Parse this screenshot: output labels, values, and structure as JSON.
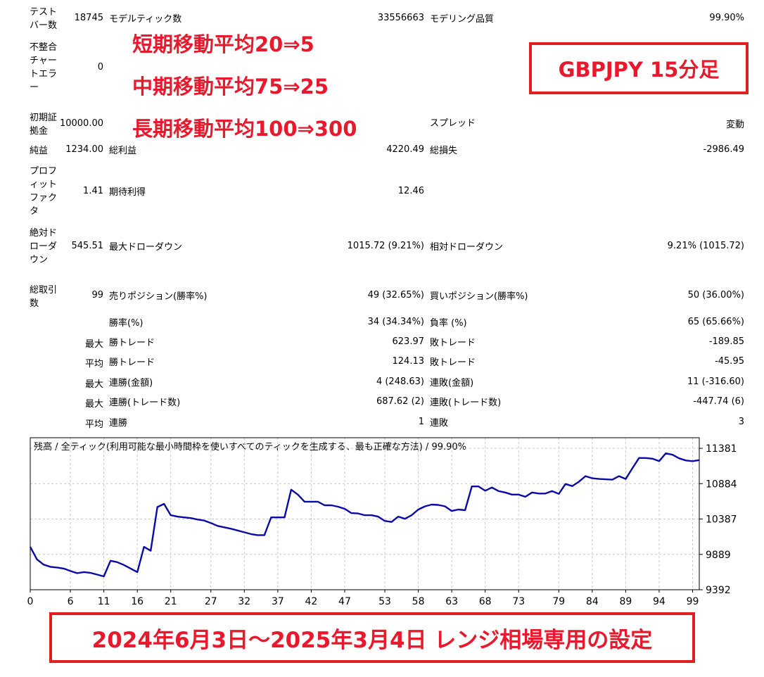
{
  "stats": {
    "bars_label": "テスト\nバー数",
    "bars_value": "18745",
    "ticks_label": "モデルティック数",
    "ticks_value": "33556663",
    "quality_label": "モデリング品質",
    "quality_value": "99.90%",
    "mismatch_label": "不整合\nチャー\nトエラ\nー",
    "mismatch_value": "0",
    "deposit_label": "初期証\n拠金",
    "deposit_value": "10000.00",
    "spread_label": "スプレッド",
    "spread_value": "変動",
    "net_label": "純益",
    "net_value": "1234.00",
    "gross_profit_label": "総利益",
    "gross_profit_value": "4220.49",
    "gross_loss_label": "総損失",
    "gross_loss_value": "-2986.49",
    "pf_label": "プロフ\nィット\nファク\nタ",
    "pf_value": "1.41",
    "expected_label": "期待利得",
    "expected_value": "12.46",
    "abs_dd_label": "絶対ド\nローダ\nウン",
    "abs_dd_value": "545.51",
    "max_dd_label": "最大ドローダウン",
    "max_dd_value": "1015.72 (9.21%)",
    "rel_dd_label": "相対ドローダウン",
    "rel_dd_value": "9.21% (1015.72)",
    "total_trades_label": "総取引\n数",
    "total_trades_value": "99",
    "short_label": "売りポジション(勝率%)",
    "short_value": "49 (32.65%)",
    "long_label": "買いポジション(勝率%)",
    "long_value": "50 (36.00%)",
    "win_rate_label": "勝率(%)",
    "win_rate_value": "34 (34.34%)",
    "loss_rate_label": "負率 (%)",
    "loss_rate_value": "65 (65.66%)",
    "max1": "最大",
    "max_win_label": "勝トレード",
    "max_win_value": "623.97",
    "max_loss_label": "敗トレード",
    "max_loss_value": "-189.85",
    "avg1": "平均",
    "avg_win_label": "勝トレード",
    "avg_win_value": "124.13",
    "avg_loss_label": "敗トレード",
    "avg_loss_value": "-45.95",
    "max2": "最大",
    "cons_win_money_label": "連勝(金額)",
    "cons_win_money_value": "4 (248.63)",
    "cons_loss_money_label": "連敗(金額)",
    "cons_loss_money_value": "11 (-316.60)",
    "max3": "最大",
    "cons_win_count_label": "連勝(トレード数)",
    "cons_win_count_value": "687.62 (2)",
    "cons_loss_count_label": "連敗(トレード数)",
    "cons_loss_count_value": "-447.74 (6)",
    "avg2": "平均",
    "avg_cons_win_label": "連勝",
    "avg_cons_win_value": "1",
    "avg_cons_loss_label": "連敗",
    "avg_cons_loss_value": "3"
  },
  "annotations": {
    "short_ma": "短期移動平均20⇒5",
    "mid_ma": "中期移動平均75⇒25",
    "long_ma": "長期移動平均100⇒300",
    "pair": "GBPJPY 15分足",
    "period": "2024年6月3日～2025年3月4日 レンジ相場専用の設定"
  },
  "colors": {
    "line": "#0a0aa8",
    "grid": "#c8c8c8",
    "annotation": "#e8192c",
    "box_border": "#e02020"
  },
  "chart_data": {
    "type": "line",
    "title": "残高 / 全ティック(利用可能な最小時間枠を使いすべてのティックを生成する、最も正確な方法) / 99.90%",
    "xlabel": "",
    "ylabel": "",
    "xlim": [
      0,
      100
    ],
    "ylim": [
      9392,
      11530
    ],
    "x_ticks": [
      0,
      6,
      11,
      16,
      21,
      27,
      32,
      37,
      42,
      47,
      53,
      58,
      63,
      68,
      73,
      79,
      84,
      89,
      94,
      99
    ],
    "y_ticks": [
      9392,
      9889,
      10387,
      10884,
      11381
    ],
    "grid": true,
    "series": [
      {
        "values": [
          [
            0,
            9995
          ],
          [
            1,
            9820
          ],
          [
            2,
            9745
          ],
          [
            3,
            9715
          ],
          [
            4,
            9705
          ],
          [
            5,
            9690
          ],
          [
            6,
            9655
          ],
          [
            7,
            9625
          ],
          [
            8,
            9640
          ],
          [
            9,
            9630
          ],
          [
            10,
            9605
          ],
          [
            11,
            9580
          ],
          [
            12,
            9800
          ],
          [
            13,
            9780
          ],
          [
            14,
            9740
          ],
          [
            15,
            9690
          ],
          [
            16,
            9640
          ],
          [
            17,
            9995
          ],
          [
            18,
            9940
          ],
          [
            19,
            10555
          ],
          [
            20,
            10600
          ],
          [
            21,
            10440
          ],
          [
            22,
            10420
          ],
          [
            23,
            10410
          ],
          [
            24,
            10400
          ],
          [
            25,
            10380
          ],
          [
            26,
            10365
          ],
          [
            27,
            10330
          ],
          [
            28,
            10290
          ],
          [
            29,
            10270
          ],
          [
            30,
            10250
          ],
          [
            31,
            10225
          ],
          [
            32,
            10200
          ],
          [
            33,
            10175
          ],
          [
            34,
            10160
          ],
          [
            35,
            10160
          ],
          [
            36,
            10410
          ],
          [
            37,
            10410
          ],
          [
            38,
            10410
          ],
          [
            39,
            10800
          ],
          [
            40,
            10730
          ],
          [
            41,
            10630
          ],
          [
            42,
            10630
          ],
          [
            43,
            10630
          ],
          [
            44,
            10580
          ],
          [
            45,
            10580
          ],
          [
            46,
            10560
          ],
          [
            47,
            10530
          ],
          [
            48,
            10470
          ],
          [
            49,
            10465
          ],
          [
            50,
            10440
          ],
          [
            51,
            10440
          ],
          [
            52,
            10420
          ],
          [
            53,
            10360
          ],
          [
            54,
            10345
          ],
          [
            55,
            10420
          ],
          [
            56,
            10390
          ],
          [
            57,
            10440
          ],
          [
            58,
            10520
          ],
          [
            59,
            10565
          ],
          [
            60,
            10590
          ],
          [
            61,
            10585
          ],
          [
            62,
            10565
          ],
          [
            63,
            10500
          ],
          [
            64,
            10520
          ],
          [
            65,
            10510
          ],
          [
            66,
            10845
          ],
          [
            67,
            10845
          ],
          [
            68,
            10785
          ],
          [
            69,
            10830
          ],
          [
            70,
            10780
          ],
          [
            71,
            10760
          ],
          [
            72,
            10730
          ],
          [
            73,
            10730
          ],
          [
            74,
            10700
          ],
          [
            75,
            10760
          ],
          [
            76,
            10745
          ],
          [
            77,
            10745
          ],
          [
            78,
            10780
          ],
          [
            79,
            10740
          ],
          [
            80,
            10880
          ],
          [
            81,
            10850
          ],
          [
            82,
            10910
          ],
          [
            83,
            10990
          ],
          [
            84,
            10960
          ],
          [
            85,
            10950
          ],
          [
            86,
            10945
          ],
          [
            87,
            10940
          ],
          [
            88,
            10990
          ],
          [
            89,
            10950
          ],
          [
            90,
            11100
          ],
          [
            91,
            11245
          ],
          [
            92,
            11245
          ],
          [
            93,
            11235
          ],
          [
            94,
            11200
          ],
          [
            95,
            11310
          ],
          [
            96,
            11290
          ],
          [
            97,
            11240
          ],
          [
            98,
            11210
          ],
          [
            99,
            11200
          ],
          [
            100,
            11215
          ]
        ]
      }
    ]
  }
}
